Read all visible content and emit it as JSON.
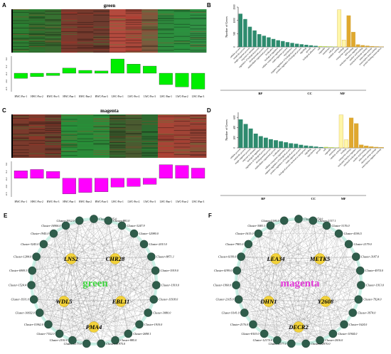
{
  "panel_labels": [
    "A",
    "B",
    "C",
    "D",
    "E",
    "F"
  ],
  "chart_data": [
    {
      "panel": "A",
      "type": "heatmap",
      "title": "green",
      "columns": [
        "HWC-Pro-1",
        "HWC-Pro-2",
        "HWC-Pro-3",
        "HWC-Pan-1",
        "HWC-Pan-2",
        "HWC-Pan-3",
        "LWC-Pro-1",
        "LWC-Pro-2",
        "LWC-Pro-3",
        "LWC-Pan-1",
        "LWC-Pan-2",
        "LWC-Pan-3"
      ],
      "column_colors": [
        "#2e7a32",
        "#2f6e2e",
        "#3a6a30",
        "#7a3a2e",
        "#753a2d",
        "#6e3b2e",
        "#b34a3e",
        "#a8473a",
        "#7c5a3e",
        "#2f8b3e",
        "#2c8f3f",
        "#318f45"
      ],
      "eigengene_color": "#00ee00",
      "eigengene": [
        -0.18,
        -0.12,
        -0.08,
        0.18,
        0.1,
        0.08,
        0.5,
        0.32,
        0.25,
        -0.4,
        -0.48,
        -0.56
      ],
      "ticks": [
        "0.4",
        "0.2",
        "-0.2",
        "-0.4",
        "-0.6"
      ],
      "ylim": [
        -0.65,
        0.6
      ]
    },
    {
      "panel": "B",
      "type": "bar",
      "ylabel": "Number of Genes",
      "yticks": [
        0,
        500,
        1000,
        1500
      ],
      "ylim": [
        0,
        1500
      ],
      "groups": [
        "BP",
        "CC",
        "MF"
      ],
      "categories": [
        "cellular process",
        "metabolic process",
        "single-organism process",
        "response to stimulus",
        "regulation of biological process",
        "developmental process",
        "multicellular organismal process",
        "localization",
        "biological regulation",
        "cellular component organization",
        "multi-organism process",
        "reproduction",
        "negative regulation of biological process",
        "positive regulation of biological process",
        "signaling",
        "growth",
        "biological adhesion",
        "cell",
        "organelle",
        "membrane",
        "cell part",
        "catalytic activity",
        "binding",
        "transporter activity",
        "ATP binding",
        "molecular function regulator",
        "nucleic acid binding",
        "structural molecule activity",
        "antioxidant activity",
        "transcription factor activity",
        "protein binding transcription"
      ],
      "group_of": [
        "BP",
        "BP",
        "BP",
        "BP",
        "BP",
        "BP",
        "BP",
        "BP",
        "BP",
        "BP",
        "BP",
        "BP",
        "BP",
        "BP",
        "BP",
        "BP",
        "BP",
        "CC",
        "CC",
        "CC",
        "CC",
        "MF",
        "MF",
        "MF",
        "MF",
        "MF",
        "MF",
        "MF",
        "MF",
        "MF",
        "MF"
      ],
      "values": [
        1250,
        1050,
        760,
        620,
        480,
        420,
        360,
        300,
        250,
        220,
        180,
        150,
        120,
        100,
        80,
        60,
        40,
        30,
        25,
        20,
        15,
        1400,
        260,
        1180,
        560,
        90,
        60,
        40,
        25,
        15,
        10
      ]
    },
    {
      "panel": "C",
      "type": "heatmap",
      "title": "magenta",
      "columns": [
        "HWC-Pro-1",
        "HWC-Pro-2",
        "HWC-Pro-3",
        "HWC-Pan-1",
        "HWC-Pan-2",
        "HWC-Pan-3",
        "LWC-Pro-1",
        "LWC-Pro-2",
        "LWC-Pro-3",
        "LWC-Pan-1",
        "LWC-Pan-2",
        "LWC-Pan-3"
      ],
      "column_colors": [
        "#7a3a2c",
        "#7a3a2c",
        "#6e3a2c",
        "#2a8d3a",
        "#2a8a38",
        "#2e8a3a",
        "#3a5a2c",
        "#4a5a30",
        "#2e6a30",
        "#a84436",
        "#a04436",
        "#984436"
      ],
      "eigengene_color": "#ff00ff",
      "eigengene": [
        0.22,
        0.26,
        0.2,
        -0.46,
        -0.42,
        -0.4,
        -0.26,
        -0.24,
        -0.18,
        0.4,
        0.38,
        0.3
      ],
      "ticks": [
        "0.4",
        "0.2",
        "-0.2",
        "-0.4",
        "-0.6"
      ],
      "ylim": [
        -0.55,
        0.5
      ]
    },
    {
      "panel": "D",
      "type": "bar",
      "ylabel": "Number of Genes",
      "yticks": [
        0,
        200,
        400,
        600
      ],
      "ylim": [
        0,
        700
      ],
      "groups": [
        "BP",
        "CC",
        "MF"
      ],
      "categories": [
        "cellular process",
        "metabolic process",
        "single-organism process",
        "response to stimulus",
        "biological regulation",
        "regulation of biological process",
        "developmental process",
        "multicellular organismal process",
        "localization",
        "cellular component organization",
        "negative regulation of biological process",
        "positive regulation of biological process",
        "multi-organism process",
        "biological process involved in interspecies",
        "signaling",
        "reproduction",
        "growth",
        "cell",
        "organelle",
        "membrane",
        "catalytic activity",
        "binding",
        "transporter activity",
        "molecular function regulator",
        "structural molecule activity",
        "nucleic acid binding",
        "antioxidant activity",
        "electron carrier activity",
        "transcription regulator activity"
      ],
      "group_of": [
        "BP",
        "BP",
        "BP",
        "BP",
        "BP",
        "BP",
        "BP",
        "BP",
        "BP",
        "BP",
        "BP",
        "BP",
        "BP",
        "BP",
        "BP",
        "BP",
        "BP",
        "CC",
        "CC",
        "CC",
        "MF",
        "MF",
        "MF",
        "MF",
        "MF",
        "MF",
        "MF",
        "MF",
        "MF"
      ],
      "values": [
        560,
        470,
        380,
        280,
        230,
        200,
        170,
        150,
        130,
        110,
        90,
        80,
        60,
        45,
        35,
        25,
        15,
        18,
        12,
        8,
        650,
        160,
        590,
        480,
        60,
        40,
        25,
        15,
        10
      ]
    }
  ],
  "networks": [
    {
      "panel": "E",
      "center_label": "green",
      "center_color": "#3ed43e",
      "hubs": [
        "LNS2",
        "CHR28",
        "WDL5",
        "EBL11",
        "PMA4"
      ],
      "outer_nodes": [
        "Cluster-5715.0",
        "Cluster-881.0",
        "Cluster-3247.9",
        "Cluster-12980.0",
        "Cluster-2013.0",
        "Cluster-8871.1",
        "Cluster-1919.0",
        "Cluster-1910.0",
        "Cluster-11918.0",
        "Cluster-3080.0",
        "Cluster-1910.0",
        "Cluster-2698.1",
        "Cluster-885.0",
        "Cluster-11975.0",
        "Cluster-4173.0",
        "Cluster-2192.0",
        "Cluster-7152.0",
        "Cluster-11962.0",
        "Cluster-10692.0",
        "Cluster-1931.0",
        "Cluster-1524.4",
        "Cluster-6909.3",
        "Cluster-1284.0",
        "Cluster-3243.0",
        "Cluster-1945.0",
        "Cluster-16906.0",
        "Cluster-1912.0"
      ]
    },
    {
      "panel": "F",
      "center_label": "magenta",
      "center_color": "#e23ad8",
      "hubs": [
        "LEA34",
        "METK5",
        "DHN1",
        "Y2608",
        "DECR2"
      ],
      "outer_nodes": [
        "Cluster-27174.0",
        "Cluster-2137.1",
        "Cluster-3176.0",
        "Cluster-4196.5",
        "Cluster-2179.0",
        "Cluster-3187.0",
        "Cluster-4974.0",
        "Cluster-1913.0",
        "Cluster-7924.0",
        "Cluster-3974.0",
        "Cluster-1624.0",
        "Cluster-11944.0",
        "Cluster-2016.0",
        "Cluster-12970.0",
        "Cluster-5377.0",
        "Cluster-12174.0",
        "Cluster-8103.0",
        "Cluster-2176.0",
        "Cluster-9141.0",
        "Cluster-2105.0",
        "Cluster-1960.0",
        "Cluster-4199.0",
        "Cluster-6199.0",
        "Cluster-7981.0",
        "Cluster-1613.0",
        "Cluster-3083.1",
        "Cluster-3186.0"
      ]
    }
  ]
}
